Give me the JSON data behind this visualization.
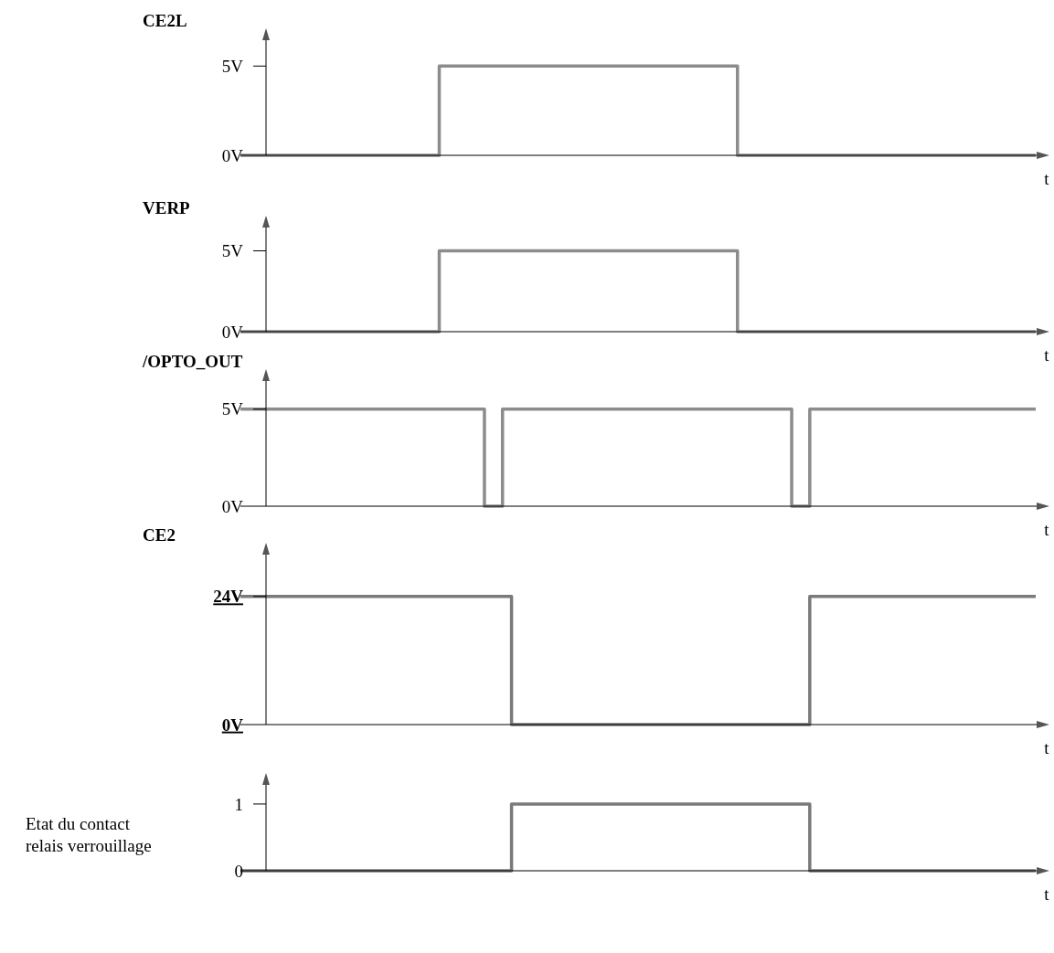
{
  "chart_data": [
    {
      "type": "step",
      "title": "CE2L",
      "xlabel": "t",
      "categories": [
        null,
        null,
        null,
        null,
        null,
        null,
        null,
        null,
        null,
        null,
        null,
        null,
        null,
        null,
        null,
        null,
        null,
        null,
        null,
        null,
        null,
        null,
        null,
        null,
        null,
        null,
        null,
        null,
        null,
        null,
        null,
        null,
        null,
        null,
        null,
        null,
        null,
        null,
        null,
        null,
        null,
        null,
        null,
        null,
        null,
        null,
        null,
        null,
        null,
        null,
        null,
        null,
        null,
        null,
        null,
        null,
        null,
        null,
        null,
        null,
        null,
        null,
        null,
        null,
        null,
        null,
        null,
        null,
        null,
        null,
        null,
        null,
        null,
        null,
        null,
        null,
        null,
        null,
        null,
        null,
        null,
        null,
        null,
        null,
        null,
        null,
        null,
        null
      ],
      "color": "#8c8c8c",
      "values": [
        0,
        0,
        0,
        0,
        0,
        0,
        0,
        0,
        0,
        0,
        0,
        0,
        0,
        0,
        0,
        0,
        0,
        0,
        0,
        0,
        0,
        0,
        5,
        5,
        5,
        5,
        5,
        5,
        5,
        5,
        5,
        5,
        5,
        5,
        5,
        5,
        5,
        5,
        5,
        5,
        5,
        5,
        5,
        5,
        5,
        5,
        5,
        5,
        5,
        5,
        5,
        5,
        5,
        5,
        5,
        0,
        0,
        0,
        0,
        0,
        0,
        0,
        0,
        0,
        0,
        0,
        0,
        0,
        0,
        0,
        0,
        0,
        0,
        0,
        0,
        0,
        0,
        0,
        0,
        0,
        0,
        0,
        0,
        0,
        0,
        0,
        0,
        0
      ],
      "ylim": [
        0,
        6.5
      ],
      "yticks": [
        {
          "value": 0,
          "label": "0V"
        },
        {
          "value": 5,
          "label": "5V"
        }
      ],
      "tick_labels": "y",
      "grid": false
    },
    {
      "type": "step",
      "title": "VERP",
      "xlabel": "t",
      "categories": [
        null,
        null,
        null,
        null,
        null,
        null,
        null,
        null,
        null,
        null,
        null,
        null,
        null,
        null,
        null,
        null,
        null,
        null,
        null,
        null,
        null,
        null,
        null,
        null,
        null,
        null,
        null,
        null,
        null,
        null,
        null,
        null,
        null,
        null,
        null,
        null,
        null,
        null,
        null,
        null,
        null,
        null,
        null,
        null,
        null,
        null,
        null,
        null,
        null,
        null,
        null,
        null,
        null,
        null,
        null,
        null,
        null,
        null,
        null,
        null,
        null,
        null,
        null,
        null,
        null,
        null,
        null,
        null,
        null,
        null,
        null,
        null,
        null,
        null,
        null,
        null,
        null,
        null,
        null,
        null,
        null,
        null,
        null,
        null,
        null,
        null,
        null,
        null
      ],
      "color": "#8c8c8c",
      "values": [
        0,
        0,
        0,
        0,
        0,
        0,
        0,
        0,
        0,
        0,
        0,
        0,
        0,
        0,
        0,
        0,
        0,
        0,
        0,
        0,
        0,
        0,
        5,
        5,
        5,
        5,
        5,
        5,
        5,
        5,
        5,
        5,
        5,
        5,
        5,
        5,
        5,
        5,
        5,
        5,
        5,
        5,
        5,
        5,
        5,
        5,
        5,
        5,
        5,
        5,
        5,
        5,
        5,
        5,
        5,
        0,
        0,
        0,
        0,
        0,
        0,
        0,
        0,
        0,
        0,
        0,
        0,
        0,
        0,
        0,
        0,
        0,
        0,
        0,
        0,
        0,
        0,
        0,
        0,
        0,
        0,
        0,
        0,
        0,
        0,
        0,
        0,
        0
      ],
      "ylim": [
        0,
        6.5
      ],
      "yticks": [
        {
          "value": 0,
          "label": "0V"
        },
        {
          "value": 5,
          "label": "5V"
        }
      ],
      "tick_labels": "y",
      "grid": false
    },
    {
      "type": "step",
      "title": "/OPTO_OUT",
      "xlabel": "t",
      "categories": [
        null,
        null,
        null,
        null,
        null,
        null,
        null,
        null,
        null,
        null,
        null,
        null,
        null,
        null,
        null,
        null,
        null,
        null,
        null,
        null,
        null,
        null,
        null,
        null,
        null,
        null,
        null,
        null,
        null,
        null,
        null,
        null,
        null,
        null,
        null,
        null,
        null,
        null,
        null,
        null,
        null,
        null,
        null,
        null,
        null,
        null,
        null,
        null,
        null,
        null,
        null,
        null,
        null,
        null,
        null,
        null,
        null,
        null,
        null,
        null,
        null,
        null,
        null,
        null,
        null,
        null,
        null,
        null,
        null,
        null,
        null,
        null,
        null,
        null,
        null,
        null,
        null,
        null,
        null,
        null,
        null,
        null,
        null,
        null,
        null,
        null,
        null,
        null
      ],
      "color": "#8c8c8c",
      "values": [
        5,
        5,
        5,
        5,
        5,
        5,
        5,
        5,
        5,
        5,
        5,
        5,
        5,
        5,
        5,
        5,
        5,
        5,
        5,
        5,
        5,
        5,
        5,
        5,
        5,
        5,
        5,
        0,
        0,
        5,
        5,
        5,
        5,
        5,
        5,
        5,
        5,
        5,
        5,
        5,
        5,
        5,
        5,
        5,
        5,
        5,
        5,
        5,
        5,
        5,
        5,
        5,
        5,
        5,
        5,
        5,
        5,
        5,
        5,
        5,
        5,
        0,
        0,
        5,
        5,
        5,
        5,
        5,
        5,
        5,
        5,
        5,
        5,
        5,
        5,
        5,
        5,
        5,
        5,
        5,
        5,
        5,
        5,
        5,
        5,
        5,
        5,
        5
      ],
      "ylim": [
        0,
        6.5
      ],
      "yticks": [
        {
          "value": 0,
          "label": "0V"
        },
        {
          "value": 5,
          "label": "5V"
        }
      ],
      "tick_labels": "y",
      "grid": false
    },
    {
      "type": "step",
      "title": "CE2",
      "xlabel": "t",
      "categories": [
        null,
        null,
        null,
        null,
        null,
        null,
        null,
        null,
        null,
        null,
        null,
        null,
        null,
        null,
        null,
        null,
        null,
        null,
        null,
        null,
        null,
        null,
        null,
        null,
        null,
        null,
        null,
        null,
        null,
        null,
        null,
        null,
        null,
        null,
        null,
        null,
        null,
        null,
        null,
        null,
        null,
        null,
        null,
        null,
        null,
        null,
        null,
        null,
        null,
        null,
        null,
        null,
        null,
        null,
        null,
        null,
        null,
        null,
        null,
        null,
        null,
        null,
        null,
        null,
        null,
        null,
        null,
        null,
        null,
        null,
        null,
        null,
        null,
        null,
        null,
        null,
        null,
        null,
        null,
        null,
        null,
        null,
        null,
        null,
        null,
        null,
        null,
        null
      ],
      "color": "#7a7a7a",
      "values": [
        24,
        24,
        24,
        24,
        24,
        24,
        24,
        24,
        24,
        24,
        24,
        24,
        24,
        24,
        24,
        24,
        24,
        24,
        24,
        24,
        24,
        24,
        24,
        24,
        24,
        24,
        24,
        24,
        24,
        24,
        0,
        0,
        0,
        0,
        0,
        0,
        0,
        0,
        0,
        0,
        0,
        0,
        0,
        0,
        0,
        0,
        0,
        0,
        0,
        0,
        0,
        0,
        0,
        0,
        0,
        0,
        0,
        0,
        0,
        0,
        0,
        0,
        0,
        24,
        24,
        24,
        24,
        24,
        24,
        24,
        24,
        24,
        24,
        24,
        24,
        24,
        24,
        24,
        24,
        24,
        24,
        24,
        24,
        24,
        24,
        24,
        24,
        24
      ],
      "ylim": [
        0,
        32
      ],
      "yticks": [
        {
          "value": 0,
          "label": "0V"
        },
        {
          "value": 24,
          "label": "24V"
        }
      ],
      "tick_labels": "y",
      "grid": false
    },
    {
      "type": "step",
      "ylabel": "Etat du contact\nrelais verrouillage",
      "xlabel": "t",
      "categories": [
        null,
        null,
        null,
        null,
        null,
        null,
        null,
        null,
        null,
        null,
        null,
        null,
        null,
        null,
        null,
        null,
        null,
        null,
        null,
        null,
        null,
        null,
        null,
        null,
        null,
        null,
        null,
        null,
        null,
        null,
        null,
        null,
        null,
        null,
        null,
        null,
        null,
        null,
        null,
        null,
        null,
        null,
        null,
        null,
        null,
        null,
        null,
        null,
        null,
        null,
        null,
        null,
        null,
        null,
        null,
        null,
        null,
        null,
        null,
        null,
        null,
        null,
        null,
        null,
        null,
        null,
        null,
        null,
        null,
        null,
        null,
        null,
        null,
        null,
        null,
        null,
        null,
        null,
        null,
        null,
        null,
        null,
        null,
        null,
        null,
        null,
        null,
        null
      ],
      "color": "#7a7a7a",
      "values": [
        0,
        0,
        0,
        0,
        0,
        0,
        0,
        0,
        0,
        0,
        0,
        0,
        0,
        0,
        0,
        0,
        0,
        0,
        0,
        0,
        0,
        0,
        0,
        0,
        0,
        0,
        0,
        0,
        0,
        0,
        1,
        1,
        1,
        1,
        1,
        1,
        1,
        1,
        1,
        1,
        1,
        1,
        1,
        1,
        1,
        1,
        1,
        1,
        1,
        1,
        1,
        1,
        1,
        1,
        1,
        1,
        1,
        1,
        1,
        1,
        1,
        1,
        1,
        0,
        0,
        0,
        0,
        0,
        0,
        0,
        0,
        0,
        0,
        0,
        0,
        0,
        0,
        0,
        0,
        0,
        0,
        0,
        0,
        0,
        0,
        0,
        0,
        0
      ],
      "ylim": [
        0,
        1.3
      ],
      "yticks": [
        0,
        1
      ],
      "tick_labels": "y",
      "grid": false
    }
  ]
}
